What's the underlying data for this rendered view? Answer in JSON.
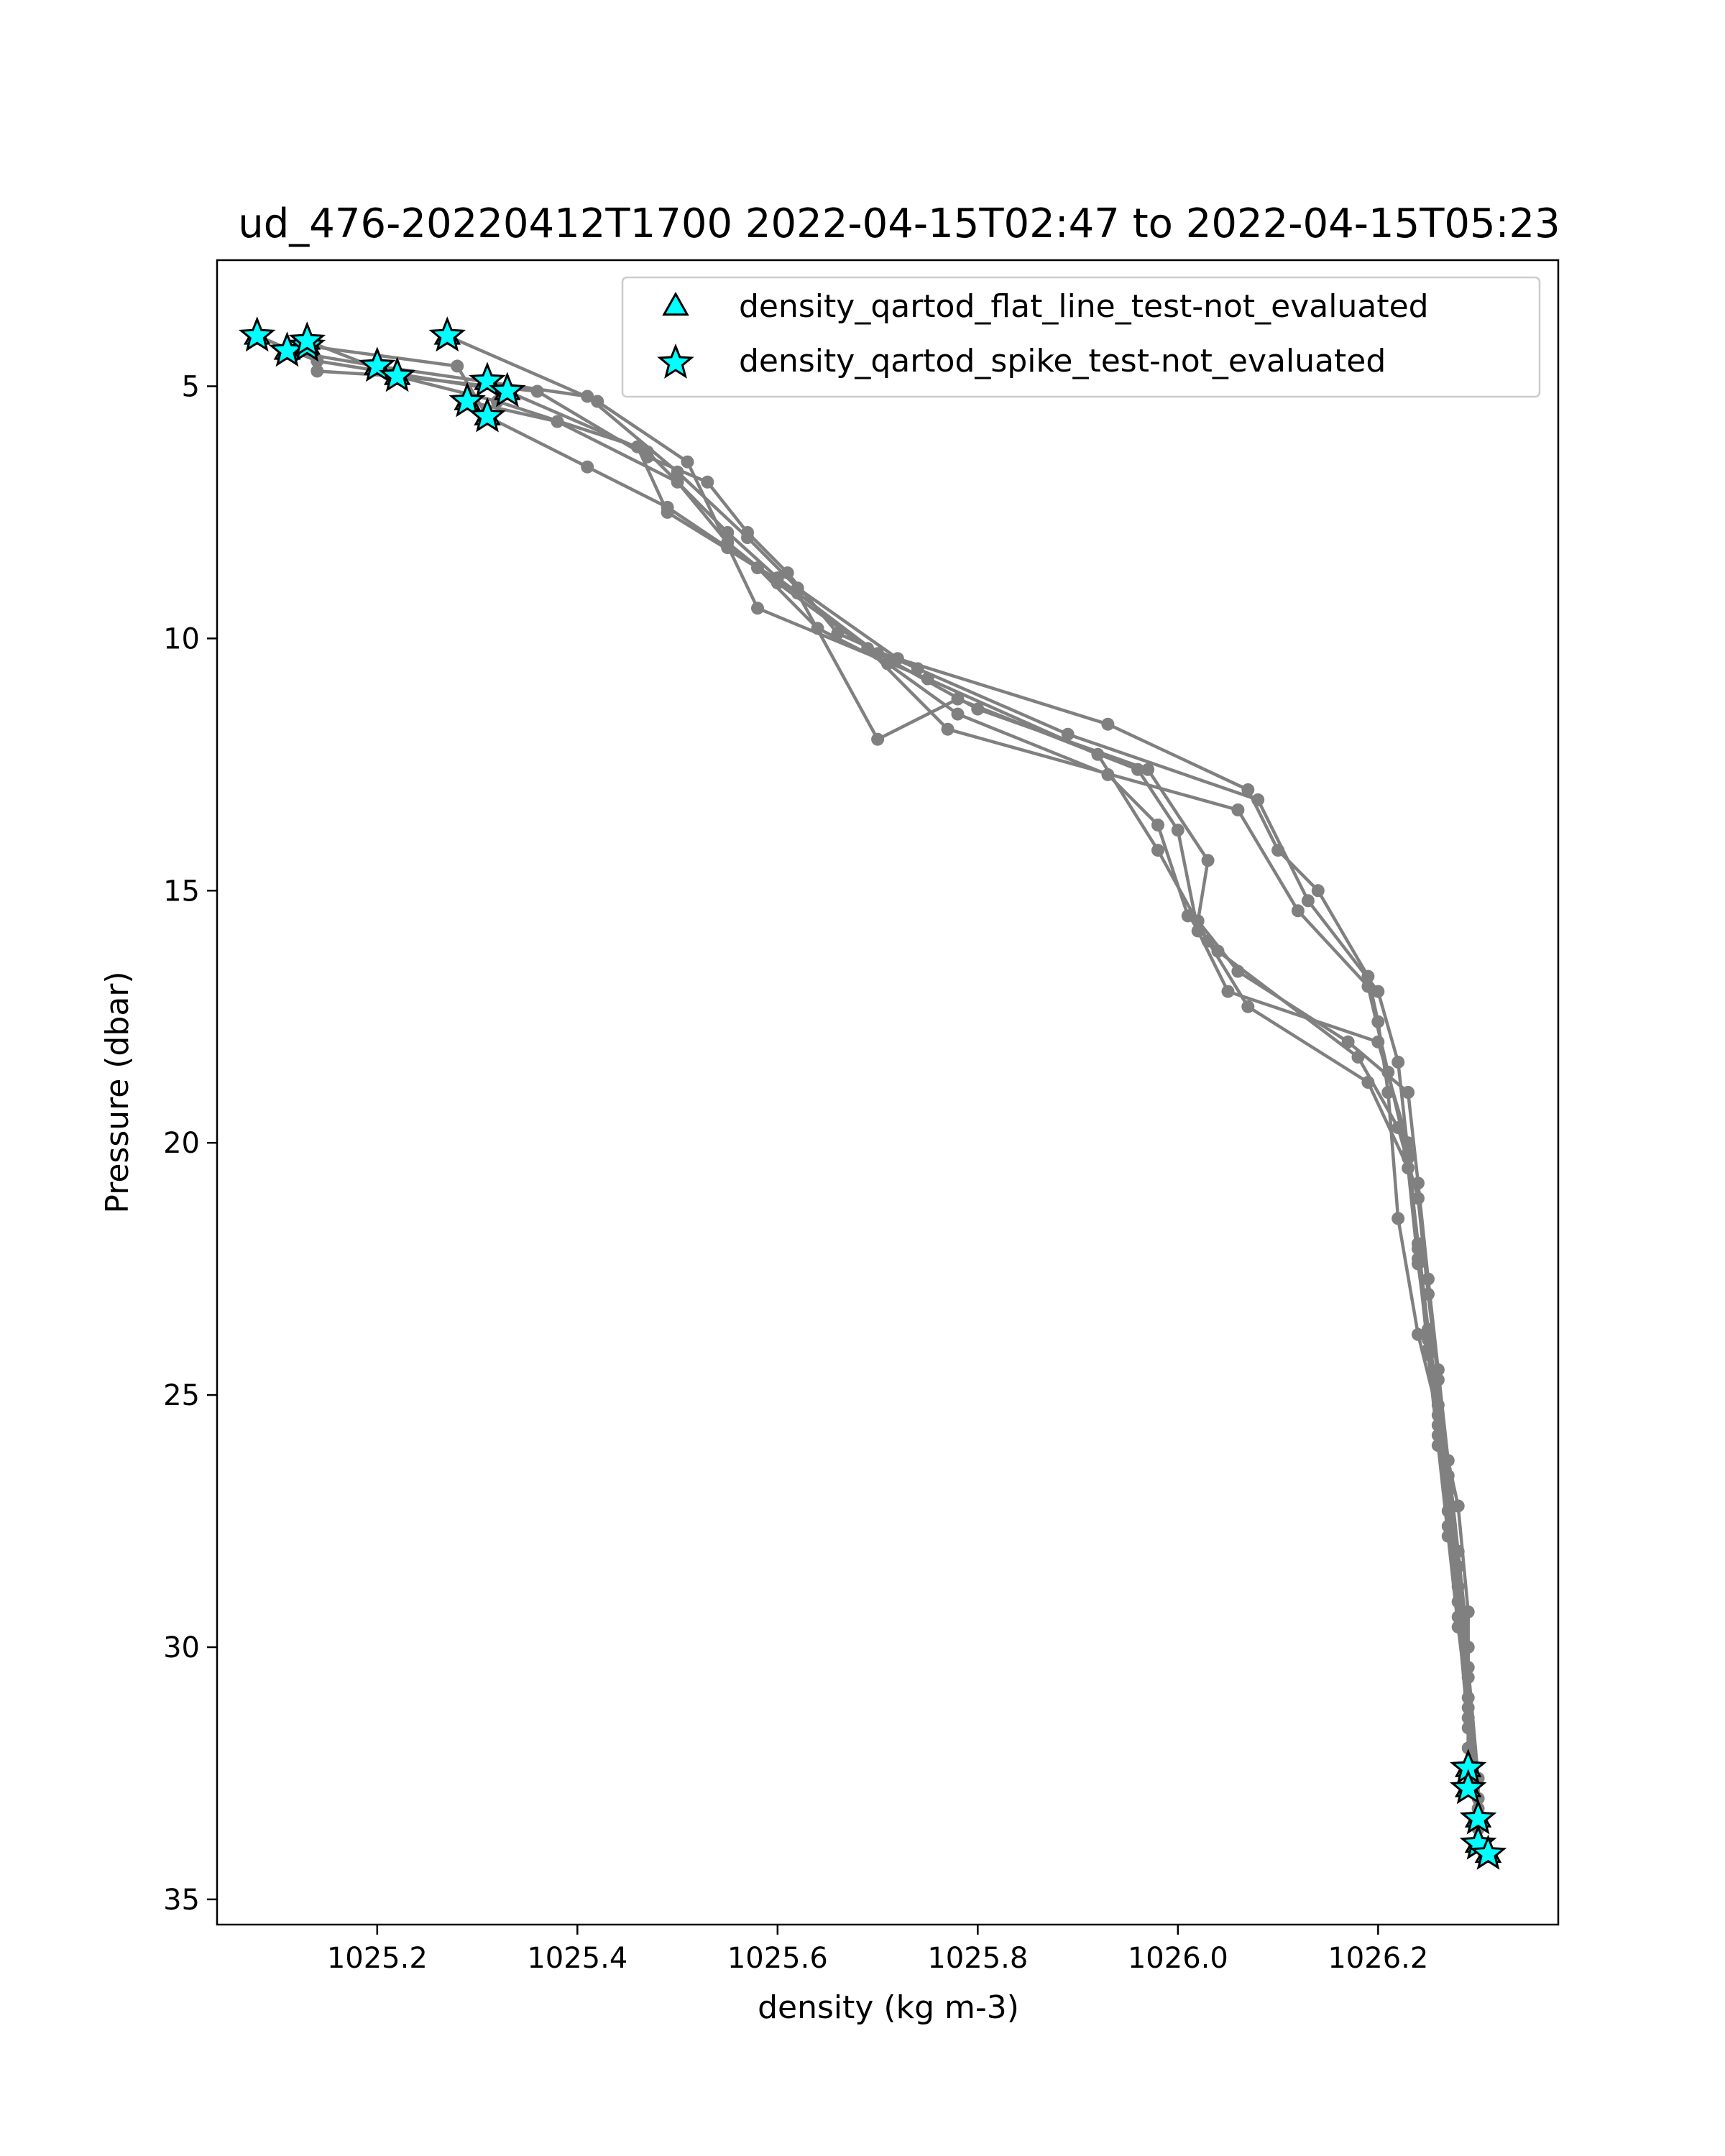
{
  "chart_data": {
    "type": "scatter",
    "title": "ud_476-20220412T1700 2022-04-15T02:47 to 2022-04-15T05:23",
    "xlabel": "density (kg m-3)",
    "ylabel": "Pressure (dbar)",
    "xlim": [
      1025.04,
      1026.38
    ],
    "ylim": [
      35.5,
      2.5
    ],
    "y_inverted": true,
    "x_ticks": [
      1025.2,
      1025.4,
      1025.6,
      1025.8,
      1026.0,
      1026.2
    ],
    "x_tick_labels": [
      "1025.2",
      "1025.4",
      "1025.6",
      "1025.8",
      "1026.0",
      "1026.2"
    ],
    "y_ticks": [
      5,
      10,
      15,
      20,
      25,
      30,
      35
    ],
    "y_tick_labels": [
      "5",
      "10",
      "15",
      "20",
      "25",
      "30",
      "35"
    ],
    "grid": false,
    "legend_position": "top-right",
    "colors": {
      "line": "#808080",
      "marker_fill": "#00FFFF",
      "marker_edge": "#000000"
    },
    "legend": [
      {
        "label": "density_qartod_flat_line_test-not_evaluated",
        "marker": "triangle"
      },
      {
        "label": "density_qartod_spike_test-not_evaluated",
        "marker": "star"
      }
    ],
    "profiles": [
      {
        "points": [
          [
            1025.08,
            4.0
          ],
          [
            1025.14,
            4.5
          ],
          [
            1025.33,
            5.1
          ],
          [
            1025.47,
            6.3
          ],
          [
            1025.55,
            7.9
          ],
          [
            1025.6,
            8.8
          ],
          [
            1025.7,
            10.3
          ],
          [
            1025.8,
            11.4
          ],
          [
            1025.97,
            12.6
          ],
          [
            1026.03,
            14.4
          ],
          [
            1026.02,
            15.6
          ],
          [
            1026.06,
            16.6
          ],
          [
            1026.17,
            18.0
          ],
          [
            1026.23,
            19.0
          ],
          [
            1026.24,
            20.8
          ],
          [
            1026.25,
            22.7
          ],
          [
            1026.26,
            24.5
          ],
          [
            1026.27,
            26.3
          ],
          [
            1026.28,
            28.1
          ],
          [
            1026.29,
            30.0
          ],
          [
            1026.29,
            32.0
          ],
          [
            1026.3,
            33.6
          ],
          [
            1026.31,
            34.1
          ]
        ]
      },
      {
        "points": [
          [
            1025.11,
            4.3
          ],
          [
            1025.2,
            4.6
          ],
          [
            1025.41,
            5.2
          ],
          [
            1025.5,
            6.7
          ],
          [
            1025.57,
            8.0
          ],
          [
            1025.62,
            9.0
          ],
          [
            1025.72,
            10.4
          ],
          [
            1025.93,
            11.7
          ],
          [
            1026.07,
            13.0
          ],
          [
            1026.1,
            14.2
          ],
          [
            1026.14,
            15.0
          ],
          [
            1026.19,
            16.7
          ],
          [
            1026.2,
            17.6
          ],
          [
            1026.21,
            19.0
          ],
          [
            1026.22,
            21.5
          ],
          [
            1026.24,
            23.8
          ],
          [
            1026.26,
            25.4
          ],
          [
            1026.28,
            27.2
          ],
          [
            1026.29,
            29.3
          ],
          [
            1026.29,
            31.4
          ],
          [
            1026.29,
            32.8
          ]
        ]
      },
      {
        "points": [
          [
            1025.13,
            4.1
          ],
          [
            1025.22,
            4.8
          ],
          [
            1025.36,
            5.1
          ],
          [
            1025.47,
            6.4
          ],
          [
            1025.53,
            6.9
          ],
          [
            1025.57,
            7.9
          ],
          [
            1025.61,
            8.7
          ],
          [
            1025.66,
            9.9
          ],
          [
            1025.74,
            10.6
          ],
          [
            1025.89,
            11.9
          ],
          [
            1026.08,
            13.2
          ],
          [
            1026.13,
            15.2
          ],
          [
            1026.2,
            17.0
          ],
          [
            1026.22,
            18.4
          ],
          [
            1026.23,
            20.2
          ],
          [
            1026.24,
            22.1
          ],
          [
            1026.25,
            24.2
          ],
          [
            1026.26,
            26.0
          ],
          [
            1026.27,
            27.8
          ],
          [
            1026.28,
            29.6
          ],
          [
            1026.29,
            31.2
          ],
          [
            1026.3,
            33.0
          ]
        ]
      },
      {
        "points": [
          [
            1025.14,
            4.7
          ],
          [
            1025.22,
            4.8
          ],
          [
            1025.32,
            5.3
          ],
          [
            1025.46,
            6.2
          ],
          [
            1025.49,
            7.5
          ],
          [
            1025.58,
            8.6
          ],
          [
            1025.64,
            9.8
          ],
          [
            1025.71,
            10.5
          ],
          [
            1025.78,
            11.5
          ],
          [
            1025.93,
            12.7
          ],
          [
            1025.98,
            13.7
          ],
          [
            1026.01,
            15.5
          ],
          [
            1026.04,
            16.2
          ],
          [
            1026.18,
            18.3
          ],
          [
            1026.22,
            19.7
          ],
          [
            1026.24,
            21.1
          ],
          [
            1026.25,
            23.0
          ],
          [
            1026.26,
            24.7
          ],
          [
            1026.27,
            26.6
          ],
          [
            1026.28,
            28.4
          ],
          [
            1026.29,
            30.4
          ],
          [
            1026.3,
            32.6
          ],
          [
            1026.3,
            33.9
          ]
        ]
      },
      {
        "points": [
          [
            1025.13,
            4.2
          ],
          [
            1025.28,
            4.6
          ],
          [
            1025.31,
            5.6
          ],
          [
            1025.41,
            6.6
          ],
          [
            1025.49,
            7.4
          ],
          [
            1025.55,
            8.2
          ],
          [
            1025.62,
            9.1
          ],
          [
            1025.7,
            12.0
          ],
          [
            1025.78,
            11.2
          ],
          [
            1025.96,
            12.6
          ],
          [
            1026.0,
            13.8
          ],
          [
            1026.02,
            15.8
          ],
          [
            1026.05,
            17.0
          ],
          [
            1026.2,
            18.0
          ],
          [
            1026.23,
            20.0
          ],
          [
            1026.24,
            22.3
          ],
          [
            1026.25,
            24.1
          ],
          [
            1026.26,
            25.8
          ],
          [
            1026.27,
            27.6
          ],
          [
            1026.28,
            29.4
          ],
          [
            1026.29,
            31.6
          ],
          [
            1026.3,
            33.4
          ]
        ]
      },
      {
        "points": [
          [
            1025.27,
            4.0
          ],
          [
            1025.42,
            5.3
          ],
          [
            1025.51,
            6.5
          ],
          [
            1025.58,
            9.4
          ],
          [
            1025.75,
            10.8
          ],
          [
            1025.92,
            12.3
          ],
          [
            1025.98,
            14.2
          ],
          [
            1026.03,
            16.0
          ],
          [
            1026.07,
            17.3
          ],
          [
            1026.19,
            18.8
          ],
          [
            1026.23,
            20.5
          ],
          [
            1026.24,
            22.4
          ],
          [
            1026.25,
            23.9
          ],
          [
            1026.26,
            25.6
          ],
          [
            1026.27,
            27.3
          ],
          [
            1026.28,
            29.1
          ],
          [
            1026.29,
            31.0
          ],
          [
            1026.29,
            32.4
          ]
        ]
      },
      {
        "points": [
          [
            1025.29,
            5.3
          ],
          [
            1025.38,
            5.7
          ],
          [
            1025.5,
            6.9
          ],
          [
            1025.55,
            8.1
          ],
          [
            1025.6,
            8.9
          ],
          [
            1025.69,
            10.2
          ],
          [
            1025.77,
            11.8
          ],
          [
            1026.06,
            13.4
          ],
          [
            1026.12,
            15.4
          ],
          [
            1026.19,
            16.9
          ],
          [
            1026.21,
            18.6
          ],
          [
            1026.23,
            20.3
          ],
          [
            1026.24,
            22.0
          ],
          [
            1026.25,
            23.7
          ],
          [
            1026.26,
            25.2
          ],
          [
            1026.27,
            26.9
          ],
          [
            1026.28,
            28.8
          ],
          [
            1026.29,
            30.6
          ],
          [
            1026.3,
            33.2
          ]
        ]
      }
    ],
    "flat_line_not_evaluated_points": [
      [
        1025.08,
        4.0
      ],
      [
        1025.11,
        4.3
      ],
      [
        1025.13,
        4.2
      ],
      [
        1025.13,
        4.1
      ],
      [
        1025.2,
        4.6
      ],
      [
        1025.22,
        4.8
      ],
      [
        1025.27,
        4.0
      ],
      [
        1025.31,
        4.9
      ],
      [
        1025.33,
        5.1
      ],
      [
        1025.29,
        5.3
      ],
      [
        1025.31,
        5.6
      ],
      [
        1026.29,
        32.4
      ],
      [
        1026.29,
        32.8
      ],
      [
        1026.3,
        33.4
      ],
      [
        1026.3,
        33.9
      ],
      [
        1026.31,
        34.1
      ]
    ],
    "spike_not_evaluated_points": [
      [
        1025.08,
        4.0
      ],
      [
        1025.11,
        4.3
      ],
      [
        1025.13,
        4.2
      ],
      [
        1025.13,
        4.1
      ],
      [
        1025.2,
        4.6
      ],
      [
        1025.22,
        4.8
      ],
      [
        1025.27,
        4.0
      ],
      [
        1025.31,
        4.9
      ],
      [
        1025.33,
        5.1
      ],
      [
        1025.29,
        5.3
      ],
      [
        1025.31,
        5.6
      ],
      [
        1026.29,
        32.4
      ],
      [
        1026.29,
        32.8
      ],
      [
        1026.3,
        33.4
      ],
      [
        1026.3,
        33.9
      ],
      [
        1026.31,
        34.1
      ]
    ]
  }
}
